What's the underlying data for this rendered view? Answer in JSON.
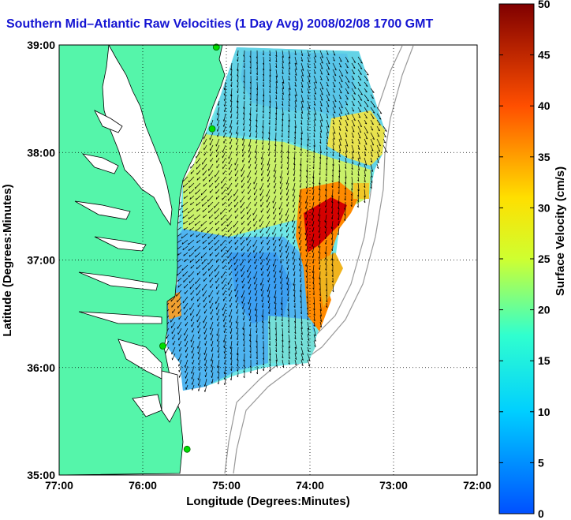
{
  "title": "Southern Mid–Atlantic Raw Velocities (1 Day Avg) 2008/02/08 1700 GMT",
  "xlabel": "Longitude (Degrees:Minutes)",
  "ylabel": "Latitude (Degrees:Minutes)",
  "x_ticks": [
    "77:00",
    "76:00",
    "75:00",
    "74:00",
    "73:00",
    "72:00"
  ],
  "y_ticks": [
    "39:00",
    "38:00",
    "37:00",
    "36:00",
    "35:00"
  ],
  "colorbar": {
    "label": "Surface Velocity (cm/s)",
    "ticks": [
      "0",
      "5",
      "10",
      "15",
      "20",
      "25",
      "30",
      "35",
      "40",
      "45",
      "50"
    ],
    "range": [
      0,
      50
    ],
    "colormap": "jet"
  },
  "colors": {
    "land": "#55f5aa",
    "water": "#ffffff",
    "title": "#1414d2",
    "station": "#00dd00",
    "bathymetry": "#999999"
  },
  "map": {
    "lon_range": [
      -77,
      -72
    ],
    "lat_range": [
      35,
      39
    ],
    "grid": true,
    "stations": [
      {
        "lon": -75.12,
        "lat": 38.98
      },
      {
        "lon": -75.17,
        "lat": 38.22
      },
      {
        "lon": -75.76,
        "lat": 36.2
      },
      {
        "lon": -75.47,
        "lat": 35.24
      }
    ]
  }
}
